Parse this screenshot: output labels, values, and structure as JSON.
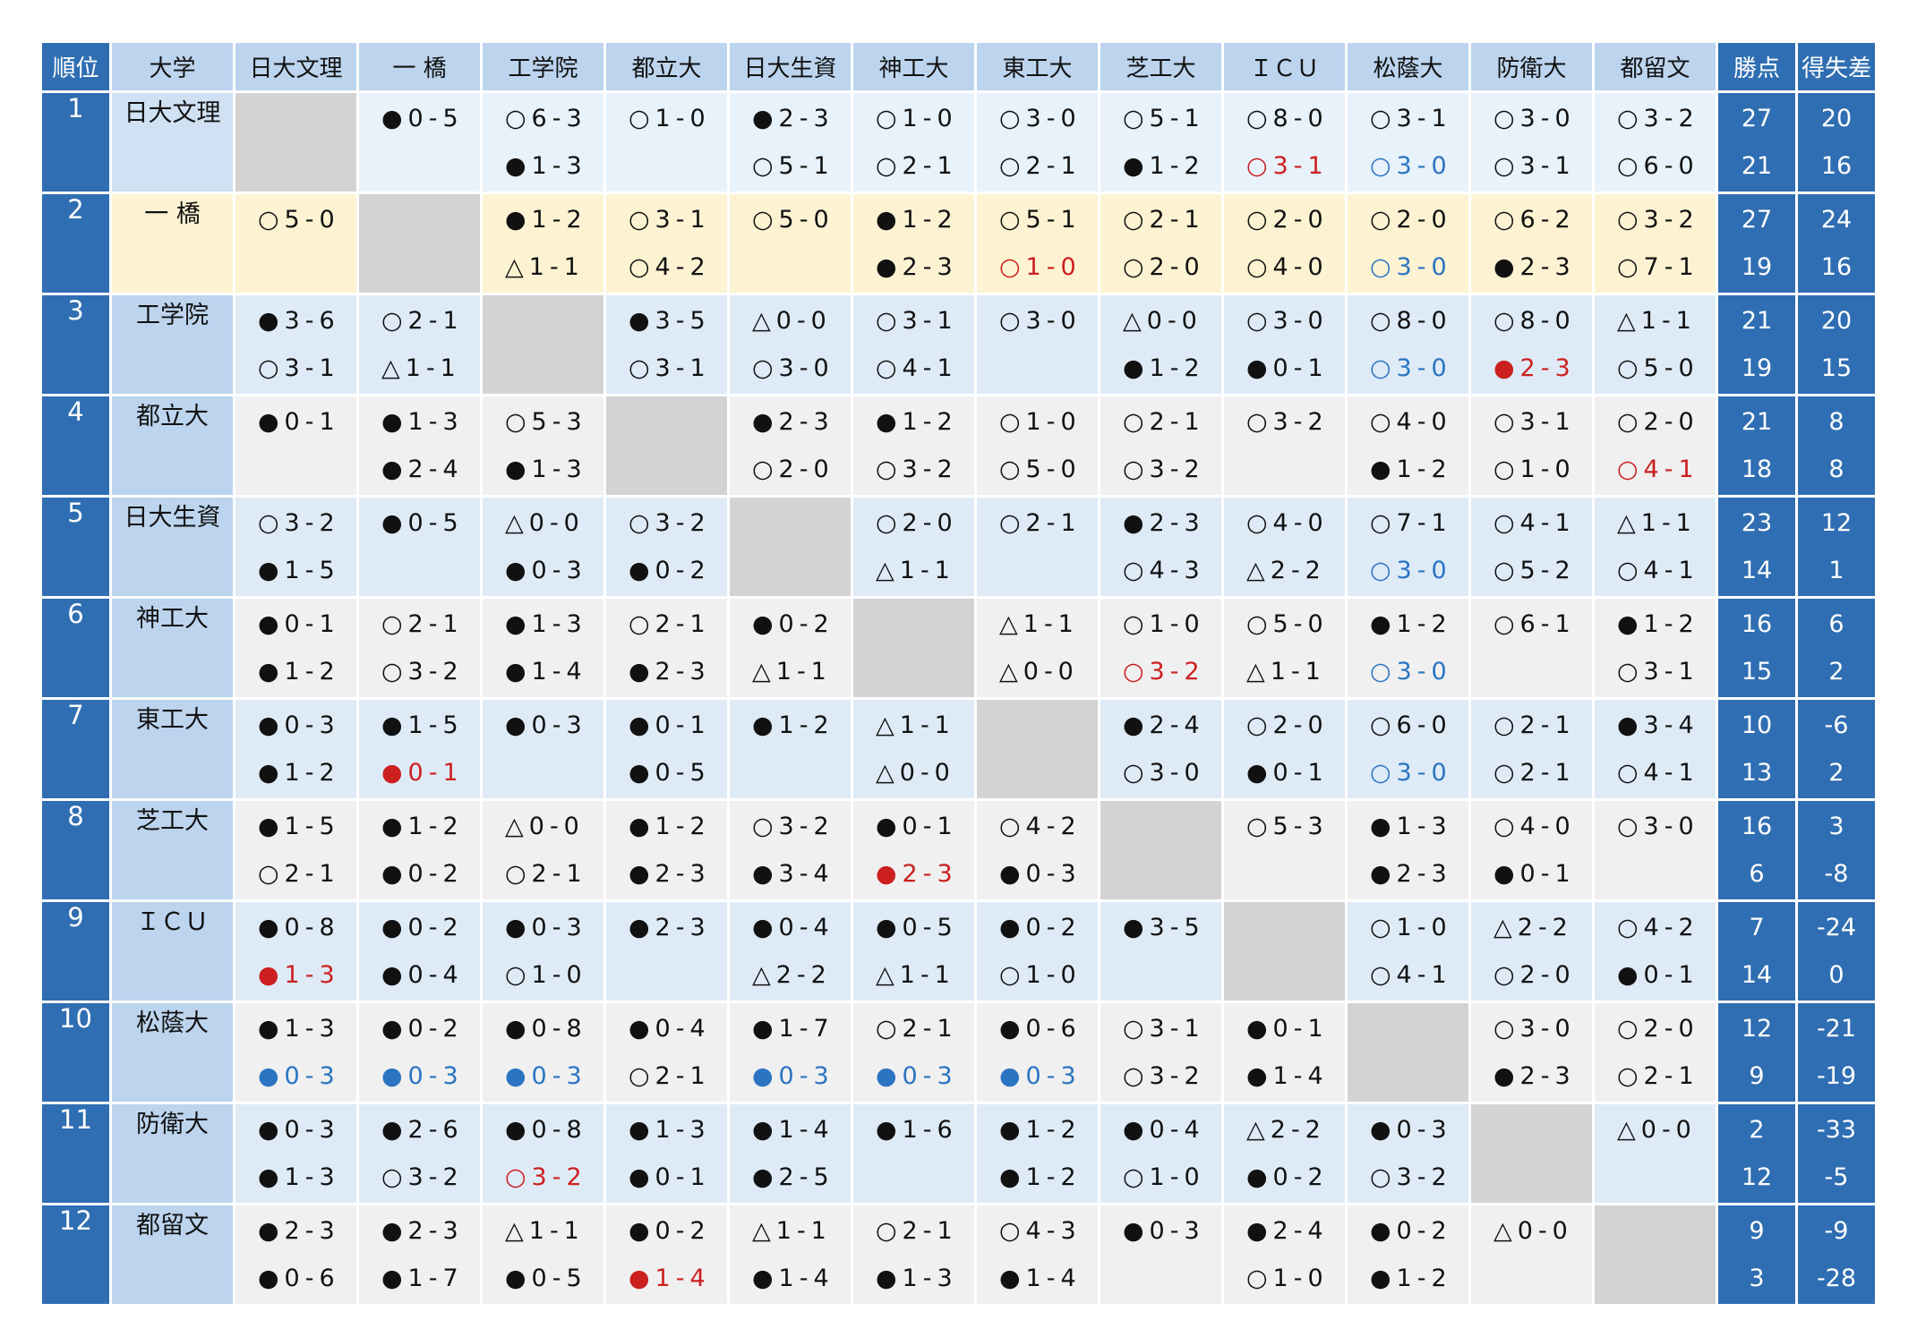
{
  "headers": {
    "rank": "順位",
    "university": "大学",
    "opponents": [
      "日大文理",
      "一 橋",
      "工学院",
      "都立大",
      "日大生資",
      "神工大",
      "東工大",
      "芝工大",
      "ＩＣＵ",
      "松蔭大",
      "防衛大",
      "都留文"
    ],
    "points": "勝点",
    "goal_diff": "得失差"
  },
  "row_colors": [
    "#e8f2fa",
    "#fdf3d2",
    "#deebf7",
    "#f0f0f0",
    "#deebf7",
    "#f0f0f0",
    "#deebf7",
    "#f0f0f0",
    "#deebf7",
    "#f0f0f0",
    "#deebf7",
    "#f0f0f0"
  ],
  "uni_colors": [
    "#cfe1f2",
    "#fdf3d2",
    "#bcd4ee",
    "#bcd4ee",
    "#bcd4ee",
    "#bcd4ee",
    "#bcd4ee",
    "#bcd4ee",
    "#bcd4ee",
    "#bcd4ee",
    "#bcd4ee",
    "#bcd4ee"
  ],
  "rows": [
    {
      "rank": "1",
      "name": "日大文理",
      "results": [
        [
          "",
          ""
        ],
        [
          "●0-5",
          ""
        ],
        [
          "○6-3",
          "●1-3"
        ],
        [
          "○1-0",
          ""
        ],
        [
          "●2-3",
          "○5-1"
        ],
        [
          "○1-0",
          "○2-1"
        ],
        [
          "○3-0",
          "○2-1"
        ],
        [
          "○5-1",
          "●1-2"
        ],
        [
          "○8-0",
          "r:○3-1"
        ],
        [
          "○3-1",
          "b:○3-0"
        ],
        [
          "○3-0",
          "○3-1"
        ],
        [
          "○3-2",
          "○6-0"
        ]
      ],
      "points": [
        "27",
        "21"
      ],
      "diff": [
        "20",
        "16"
      ]
    },
    {
      "rank": "2",
      "name": "一 橋",
      "results": [
        [
          "○5-0",
          ""
        ],
        [
          "",
          ""
        ],
        [
          "●1-2",
          "△1-1"
        ],
        [
          "○3-1",
          "○4-2"
        ],
        [
          "○5-0",
          ""
        ],
        [
          "●1-2",
          "●2-3"
        ],
        [
          "○5-1",
          "r:○1-0"
        ],
        [
          "○2-1",
          "○2-0"
        ],
        [
          "○2-0",
          "○4-0"
        ],
        [
          "○2-0",
          "b:○3-0"
        ],
        [
          "○6-2",
          "●2-3"
        ],
        [
          "○3-2",
          "○7-1"
        ]
      ],
      "points": [
        "27",
        "19"
      ],
      "diff": [
        "24",
        "16"
      ]
    },
    {
      "rank": "3",
      "name": "工学院",
      "results": [
        [
          "●3-6",
          "○3-1"
        ],
        [
          "○2-1",
          "△1-1"
        ],
        [
          "",
          ""
        ],
        [
          "●3-5",
          "○3-1"
        ],
        [
          "△0-0",
          "○3-0"
        ],
        [
          "○3-1",
          "○4-1"
        ],
        [
          "○3-0",
          ""
        ],
        [
          "△0-0",
          "●1-2"
        ],
        [
          "○3-0",
          "●0-1"
        ],
        [
          "○8-0",
          "b:○3-0"
        ],
        [
          "○8-0",
          "r:●2-3"
        ],
        [
          "△1-1",
          "○5-0"
        ]
      ],
      "points": [
        "21",
        "19"
      ],
      "diff": [
        "20",
        "15"
      ]
    },
    {
      "rank": "4",
      "name": "都立大",
      "results": [
        [
          "●0-1",
          ""
        ],
        [
          "●1-3",
          "●2-4"
        ],
        [
          "○5-3",
          "●1-3"
        ],
        [
          "",
          ""
        ],
        [
          "●2-3",
          "○2-0"
        ],
        [
          "●1-2",
          "○3-2"
        ],
        [
          "○1-0",
          "○5-0"
        ],
        [
          "○2-1",
          "○3-2"
        ],
        [
          "○3-2",
          ""
        ],
        [
          "○4-0",
          "●1-2"
        ],
        [
          "○3-1",
          "○1-0"
        ],
        [
          "○2-0",
          "r:○4-1"
        ]
      ],
      "points": [
        "21",
        "18"
      ],
      "diff": [
        "8",
        "8"
      ]
    },
    {
      "rank": "5",
      "name": "日大生資",
      "results": [
        [
          "○3-2",
          "●1-5"
        ],
        [
          "●0-5",
          ""
        ],
        [
          "△0-0",
          "●0-3"
        ],
        [
          "○3-2",
          "●0-2"
        ],
        [
          "",
          ""
        ],
        [
          "○2-0",
          "△1-1"
        ],
        [
          "○2-1",
          ""
        ],
        [
          "●2-3",
          "○4-3"
        ],
        [
          "○4-0",
          "△2-2"
        ],
        [
          "○7-1",
          "b:○3-0"
        ],
        [
          "○4-1",
          "○5-2"
        ],
        [
          "△1-1",
          "○4-1"
        ]
      ],
      "points": [
        "23",
        "14"
      ],
      "diff": [
        "12",
        "1"
      ]
    },
    {
      "rank": "6",
      "name": "神工大",
      "results": [
        [
          "●0-1",
          "●1-2"
        ],
        [
          "○2-1",
          "○3-2"
        ],
        [
          "●1-3",
          "●1-4"
        ],
        [
          "○2-1",
          "●2-3"
        ],
        [
          "●0-2",
          "△1-1"
        ],
        [
          "",
          ""
        ],
        [
          "△1-1",
          "△0-0"
        ],
        [
          "○1-0",
          "r:○3-2"
        ],
        [
          "○5-0",
          "△1-1"
        ],
        [
          "●1-2",
          "b:○3-0"
        ],
        [
          "○6-1",
          ""
        ],
        [
          "●1-2",
          "○3-1"
        ]
      ],
      "points": [
        "16",
        "15"
      ],
      "diff": [
        "6",
        "2"
      ]
    },
    {
      "rank": "7",
      "name": "東工大",
      "results": [
        [
          "●0-3",
          "●1-2"
        ],
        [
          "●1-5",
          "r:●0-1"
        ],
        [
          "●0-3",
          ""
        ],
        [
          "●0-1",
          "●0-5"
        ],
        [
          "●1-2",
          ""
        ],
        [
          "△1-1",
          "△0-0"
        ],
        [
          "",
          ""
        ],
        [
          "●2-4",
          "○3-0"
        ],
        [
          "○2-0",
          "●0-1"
        ],
        [
          "○6-0",
          "b:○3-0"
        ],
        [
          "○2-1",
          "○2-1"
        ],
        [
          "●3-4",
          "○4-1"
        ]
      ],
      "points": [
        "10",
        "13"
      ],
      "diff": [
        "-6",
        "2"
      ]
    },
    {
      "rank": "8",
      "name": "芝工大",
      "results": [
        [
          "●1-5",
          "○2-1"
        ],
        [
          "●1-2",
          "●0-2"
        ],
        [
          "△0-0",
          "○2-1"
        ],
        [
          "●1-2",
          "●2-3"
        ],
        [
          "○3-2",
          "●3-4"
        ],
        [
          "●0-1",
          "r:●2-3"
        ],
        [
          "○4-2",
          "●0-3"
        ],
        [
          "",
          ""
        ],
        [
          "○5-3",
          ""
        ],
        [
          "●1-3",
          "●2-3"
        ],
        [
          "○4-0",
          "●0-1"
        ],
        [
          "○3-0",
          ""
        ]
      ],
      "points": [
        "16",
        "6"
      ],
      "diff": [
        "3",
        "-8"
      ]
    },
    {
      "rank": "9",
      "name": "ＩＣＵ",
      "results": [
        [
          "●0-8",
          "r:●1-3"
        ],
        [
          "●0-2",
          "●0-4"
        ],
        [
          "●0-3",
          "○1-0"
        ],
        [
          "●2-3",
          ""
        ],
        [
          "●0-4",
          "△2-2"
        ],
        [
          "●0-5",
          "△1-1"
        ],
        [
          "●0-2",
          "○1-0"
        ],
        [
          "●3-5",
          ""
        ],
        [
          "",
          ""
        ],
        [
          "○1-0",
          "○4-1"
        ],
        [
          "△2-2",
          "○2-0"
        ],
        [
          "○4-2",
          "●0-1"
        ]
      ],
      "points": [
        "7",
        "14"
      ],
      "diff": [
        "-24",
        "0"
      ]
    },
    {
      "rank": "10",
      "name": "松蔭大",
      "results": [
        [
          "●1-3",
          "b:●0-3"
        ],
        [
          "●0-2",
          "b:●0-3"
        ],
        [
          "●0-8",
          "b:●0-3"
        ],
        [
          "●0-4",
          "○2-1"
        ],
        [
          "●1-7",
          "b:●0-3"
        ],
        [
          "○2-1",
          "b:●0-3"
        ],
        [
          "●0-6",
          "b:●0-3"
        ],
        [
          "○3-1",
          "○3-2"
        ],
        [
          "●0-1",
          "●1-4"
        ],
        [
          "",
          ""
        ],
        [
          "○3-0",
          "●2-3"
        ],
        [
          "○2-0",
          "○2-1"
        ]
      ],
      "points": [
        "12",
        "9"
      ],
      "diff": [
        "-21",
        "-19"
      ]
    },
    {
      "rank": "11",
      "name": "防衛大",
      "results": [
        [
          "●0-3",
          "●1-3"
        ],
        [
          "●2-6",
          "○3-2"
        ],
        [
          "●0-8",
          "r:○3-2"
        ],
        [
          "●1-3",
          "●0-1"
        ],
        [
          "●1-4",
          "●2-5"
        ],
        [
          "●1-6",
          ""
        ],
        [
          "●1-2",
          "●1-2"
        ],
        [
          "●0-4",
          "○1-0"
        ],
        [
          "△2-2",
          "●0-2"
        ],
        [
          "●0-3",
          "○3-2"
        ],
        [
          "",
          ""
        ],
        [
          "△0-0",
          ""
        ]
      ],
      "points": [
        "2",
        "12"
      ],
      "diff": [
        "-33",
        "-5"
      ]
    },
    {
      "rank": "12",
      "name": "都留文",
      "results": [
        [
          "●2-3",
          "●0-6"
        ],
        [
          "●2-3",
          "●1-7"
        ],
        [
          "△1-1",
          "●0-5"
        ],
        [
          "●0-2",
          "r:●1-4"
        ],
        [
          "△1-1",
          "●1-4"
        ],
        [
          "○2-1",
          "●1-3"
        ],
        [
          "○4-3",
          "●1-4"
        ],
        [
          "●0-3",
          ""
        ],
        [
          "●2-4",
          "○1-0"
        ],
        [
          "●0-2",
          "●1-2"
        ],
        [
          "△0-0",
          ""
        ],
        [
          "",
          ""
        ]
      ],
      "points": [
        "9",
        "3"
      ],
      "diff": [
        "-9",
        "-28"
      ]
    }
  ]
}
